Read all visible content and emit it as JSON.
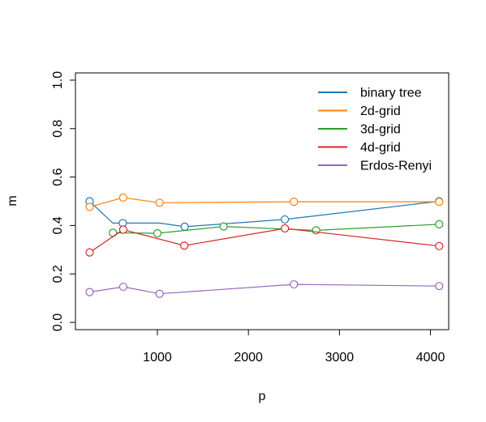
{
  "chart_data": {
    "type": "line",
    "title": "",
    "xlabel": "p",
    "ylabel": "m",
    "xlim": [
      100,
      4200
    ],
    "ylim": [
      -0.03,
      1.03
    ],
    "x_ticks": [
      1000,
      2000,
      3000,
      4000
    ],
    "y_ticks": [
      0.0,
      0.2,
      0.4,
      0.6,
      0.8,
      1.0
    ],
    "x_tick_labels": [
      "1000",
      "2000",
      "3000",
      "4000"
    ],
    "y_tick_labels": [
      "0.0",
      "0.2",
      "0.4",
      "0.6",
      "0.8",
      "1.0"
    ],
    "grid": false,
    "legend_position": "top-right",
    "series": [
      {
        "name": "binary tree",
        "color": "#1f77b4",
        "points": [
          [
            255,
            0.5
          ],
          [
            511,
            0.41
          ],
          [
            1023,
            0.41
          ],
          [
            1300,
            0.395
          ],
          [
            2400,
            0.425
          ],
          [
            4095,
            0.5
          ]
        ],
        "markers": [
          [
            255,
            0.5
          ],
          [
            620,
            0.41
          ],
          [
            1300,
            0.395
          ],
          [
            2400,
            0.425
          ],
          [
            4095,
            0.5
          ]
        ]
      },
      {
        "name": "2d-grid",
        "color": "#ff7f0e",
        "points": [
          [
            256,
            0.477
          ],
          [
            625,
            0.515
          ],
          [
            1024,
            0.494
          ],
          [
            2500,
            0.498
          ],
          [
            4096,
            0.498
          ]
        ],
        "markers": [
          [
            256,
            0.477
          ],
          [
            625,
            0.515
          ],
          [
            1024,
            0.494
          ],
          [
            2500,
            0.498
          ],
          [
            4096,
            0.498
          ]
        ]
      },
      {
        "name": "3d-grid",
        "color": "#2ca02c",
        "points": [
          [
            512,
            0.37
          ],
          [
            1000,
            0.368
          ],
          [
            1728,
            0.396
          ],
          [
            2744,
            0.38
          ],
          [
            4096,
            0.405
          ]
        ],
        "markers": [
          [
            512,
            0.37
          ],
          [
            1000,
            0.368
          ],
          [
            1728,
            0.396
          ],
          [
            2744,
            0.38
          ],
          [
            4096,
            0.405
          ]
        ]
      },
      {
        "name": "4d-grid",
        "color": "#d62728",
        "points": [
          [
            256,
            0.289
          ],
          [
            625,
            0.383
          ],
          [
            1296,
            0.317
          ],
          [
            2401,
            0.388
          ],
          [
            4096,
            0.315
          ]
        ],
        "markers": [
          [
            256,
            0.289
          ],
          [
            625,
            0.383
          ],
          [
            1296,
            0.317
          ],
          [
            2401,
            0.388
          ],
          [
            4096,
            0.315
          ]
        ]
      },
      {
        "name": "Erdos-Renyi",
        "color": "#9467bd",
        "points": [
          [
            256,
            0.125
          ],
          [
            625,
            0.147
          ],
          [
            1024,
            0.118
          ],
          [
            2500,
            0.157
          ],
          [
            4096,
            0.15
          ]
        ],
        "markers": [
          [
            256,
            0.125
          ],
          [
            625,
            0.147
          ],
          [
            1024,
            0.118
          ],
          [
            2500,
            0.157
          ],
          [
            4096,
            0.15
          ]
        ]
      }
    ]
  }
}
